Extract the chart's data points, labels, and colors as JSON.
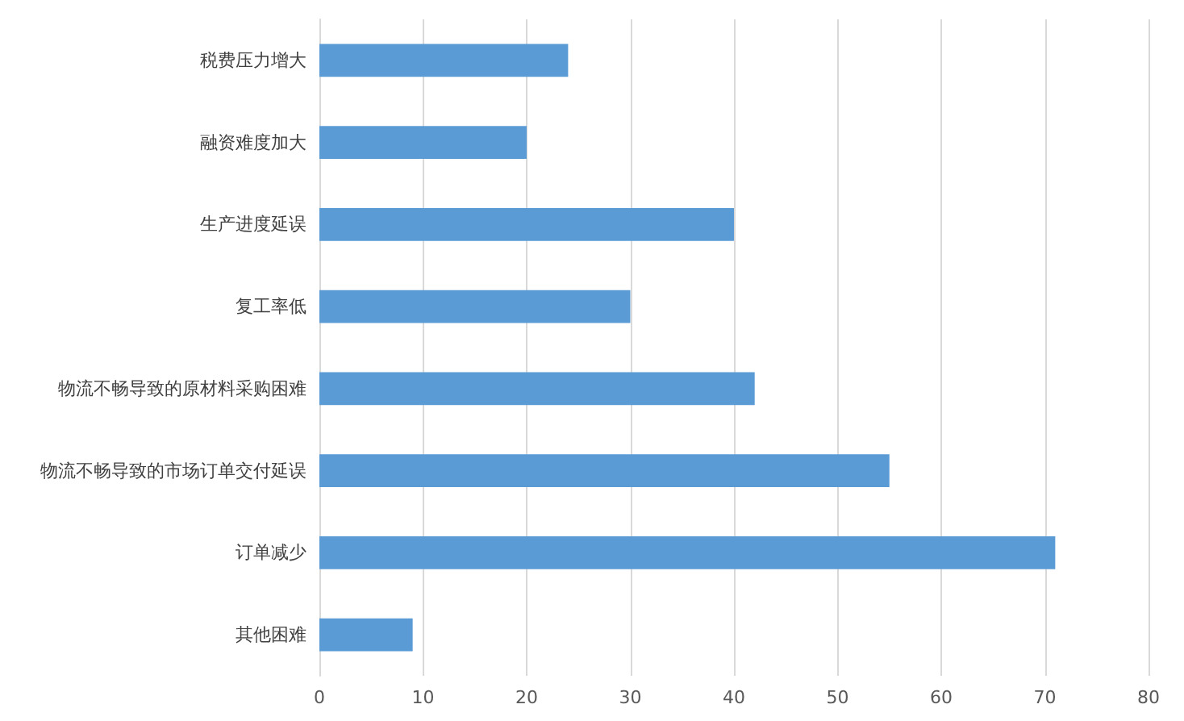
{
  "chart_data": {
    "type": "bar",
    "orientation": "horizontal",
    "categories": [
      "税费压力增大",
      "融资难度加大",
      "生产进度延误",
      "复工率低",
      "物流不畅导致的原材料采购困难",
      "物流不畅导致的市场订单交付延误",
      "订单减少",
      "其他困难"
    ],
    "values": [
      24,
      20,
      40,
      30,
      42,
      55,
      71,
      9
    ],
    "color": "#5b9bd5",
    "xlim": [
      0,
      80
    ],
    "xticks": [
      0,
      10,
      20,
      30,
      40,
      50,
      60,
      70,
      80
    ],
    "grid": "x"
  }
}
